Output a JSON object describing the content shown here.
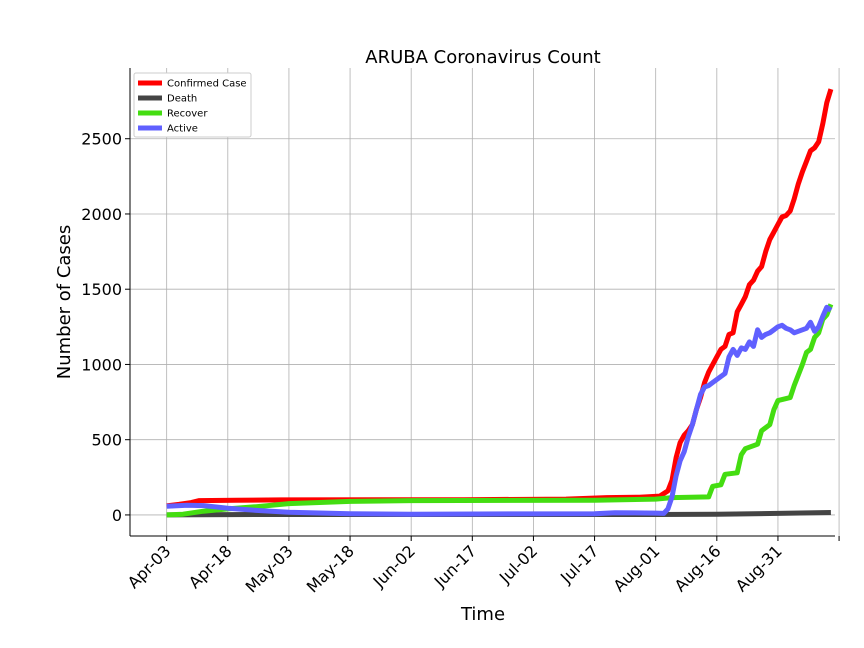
{
  "chart_data": {
    "type": "line",
    "title": "ARUBA Coronavirus Count",
    "xlabel": "Time",
    "ylabel": "Number of Cases",
    "x_ticks": [
      "Apr-03",
      "Apr-18",
      "May-03",
      "May-18",
      "Jun-02",
      "Jun-17",
      "Jul-02",
      "Jul-17",
      "Aug-01",
      "Aug-16",
      "Aug-31"
    ],
    "y_ticks": [
      0,
      500,
      1000,
      1500,
      2000,
      2500
    ],
    "xlim": [
      "2020-03-25",
      "2020-09-14"
    ],
    "ylim": [
      -140,
      2970
    ],
    "grid": true,
    "legend_position": "top-left",
    "series": [
      {
        "name": "Confirmed Case",
        "color": "#ff0000",
        "points": [
          [
            "2020-04-03",
            60
          ],
          [
            "2020-04-06",
            70
          ],
          [
            "2020-04-09",
            82
          ],
          [
            "2020-04-11",
            95
          ],
          [
            "2020-04-20",
            98
          ],
          [
            "2020-05-01",
            100
          ],
          [
            "2020-06-15",
            101
          ],
          [
            "2020-07-10",
            105
          ],
          [
            "2020-07-20",
            115
          ],
          [
            "2020-07-28",
            118
          ],
          [
            "2020-08-02",
            125
          ],
          [
            "2020-08-04",
            160
          ],
          [
            "2020-08-05",
            230
          ],
          [
            "2020-08-06",
            380
          ],
          [
            "2020-08-07",
            480
          ],
          [
            "2020-08-08",
            530
          ],
          [
            "2020-08-09",
            560
          ],
          [
            "2020-08-10",
            600
          ],
          [
            "2020-08-11",
            700
          ],
          [
            "2020-08-12",
            780
          ],
          [
            "2020-08-13",
            880
          ],
          [
            "2020-08-14",
            950
          ],
          [
            "2020-08-15",
            1000
          ],
          [
            "2020-08-16",
            1050
          ],
          [
            "2020-08-17",
            1100
          ],
          [
            "2020-08-18",
            1120
          ],
          [
            "2020-08-19",
            1200
          ],
          [
            "2020-08-20",
            1210
          ],
          [
            "2020-08-21",
            1350
          ],
          [
            "2020-08-22",
            1400
          ],
          [
            "2020-08-23",
            1450
          ],
          [
            "2020-08-24",
            1530
          ],
          [
            "2020-08-25",
            1560
          ],
          [
            "2020-08-26",
            1620
          ],
          [
            "2020-08-27",
            1650
          ],
          [
            "2020-08-28",
            1750
          ],
          [
            "2020-08-29",
            1830
          ],
          [
            "2020-08-30",
            1880
          ],
          [
            "2020-08-31",
            1930
          ],
          [
            "2020-09-01",
            1980
          ],
          [
            "2020-09-02",
            1990
          ],
          [
            "2020-09-03",
            2020
          ],
          [
            "2020-09-04",
            2100
          ],
          [
            "2020-09-05",
            2200
          ],
          [
            "2020-09-06",
            2280
          ],
          [
            "2020-09-07",
            2350
          ],
          [
            "2020-09-08",
            2420
          ],
          [
            "2020-09-09",
            2440
          ],
          [
            "2020-09-10",
            2480
          ],
          [
            "2020-09-11",
            2600
          ],
          [
            "2020-09-12",
            2740
          ],
          [
            "2020-09-13",
            2830
          ]
        ]
      },
      {
        "name": "Death",
        "color": "#444444",
        "points": [
          [
            "2020-04-03",
            0
          ],
          [
            "2020-04-18",
            2
          ],
          [
            "2020-05-03",
            3
          ],
          [
            "2020-08-01",
            3
          ],
          [
            "2020-08-16",
            5
          ],
          [
            "2020-08-31",
            10
          ],
          [
            "2020-09-13",
            16
          ]
        ]
      },
      {
        "name": "Recover",
        "color": "#44dd11",
        "points": [
          [
            "2020-04-03",
            0
          ],
          [
            "2020-04-07",
            5
          ],
          [
            "2020-04-12",
            25
          ],
          [
            "2020-04-18",
            40
          ],
          [
            "2020-04-25",
            55
          ],
          [
            "2020-05-03",
            75
          ],
          [
            "2020-05-18",
            90
          ],
          [
            "2020-06-02",
            95
          ],
          [
            "2020-07-17",
            98
          ],
          [
            "2020-08-01",
            105
          ],
          [
            "2020-08-05",
            115
          ],
          [
            "2020-08-14",
            120
          ],
          [
            "2020-08-15",
            190
          ],
          [
            "2020-08-17",
            200
          ],
          [
            "2020-08-18",
            270
          ],
          [
            "2020-08-21",
            280
          ],
          [
            "2020-08-22",
            400
          ],
          [
            "2020-08-23",
            440
          ],
          [
            "2020-08-24",
            450
          ],
          [
            "2020-08-26",
            470
          ],
          [
            "2020-08-27",
            560
          ],
          [
            "2020-08-29",
            600
          ],
          [
            "2020-08-30",
            700
          ],
          [
            "2020-08-31",
            760
          ],
          [
            "2020-09-03",
            780
          ],
          [
            "2020-09-04",
            860
          ],
          [
            "2020-09-06",
            1000
          ],
          [
            "2020-09-07",
            1080
          ],
          [
            "2020-09-08",
            1100
          ],
          [
            "2020-09-09",
            1180
          ],
          [
            "2020-09-10",
            1210
          ],
          [
            "2020-09-11",
            1300
          ],
          [
            "2020-09-12",
            1330
          ],
          [
            "2020-09-13",
            1400
          ]
        ]
      },
      {
        "name": "Active",
        "color": "#6060ff",
        "points": [
          [
            "2020-04-03",
            58
          ],
          [
            "2020-04-08",
            65
          ],
          [
            "2020-04-12",
            62
          ],
          [
            "2020-04-18",
            45
          ],
          [
            "2020-04-25",
            30
          ],
          [
            "2020-05-03",
            18
          ],
          [
            "2020-05-18",
            8
          ],
          [
            "2020-06-02",
            5
          ],
          [
            "2020-07-17",
            8
          ],
          [
            "2020-07-22",
            15
          ],
          [
            "2020-08-01",
            12
          ],
          [
            "2020-08-03",
            10
          ],
          [
            "2020-08-04",
            40
          ],
          [
            "2020-08-05",
            120
          ],
          [
            "2020-08-06",
            260
          ],
          [
            "2020-08-07",
            360
          ],
          [
            "2020-08-08",
            420
          ],
          [
            "2020-08-09",
            520
          ],
          [
            "2020-08-10",
            600
          ],
          [
            "2020-08-11",
            700
          ],
          [
            "2020-08-12",
            800
          ],
          [
            "2020-08-13",
            850
          ],
          [
            "2020-08-14",
            860
          ],
          [
            "2020-08-15",
            880
          ],
          [
            "2020-08-16",
            900
          ],
          [
            "2020-08-17",
            920
          ],
          [
            "2020-08-18",
            940
          ],
          [
            "2020-08-19",
            1050
          ],
          [
            "2020-08-20",
            1100
          ],
          [
            "2020-08-21",
            1060
          ],
          [
            "2020-08-22",
            1110
          ],
          [
            "2020-08-23",
            1100
          ],
          [
            "2020-08-24",
            1150
          ],
          [
            "2020-08-25",
            1120
          ],
          [
            "2020-08-26",
            1230
          ],
          [
            "2020-08-27",
            1180
          ],
          [
            "2020-08-28",
            1200
          ],
          [
            "2020-08-29",
            1210
          ],
          [
            "2020-08-30",
            1230
          ],
          [
            "2020-08-31",
            1250
          ],
          [
            "2020-09-01",
            1260
          ],
          [
            "2020-09-02",
            1240
          ],
          [
            "2020-09-03",
            1230
          ],
          [
            "2020-09-04",
            1210
          ],
          [
            "2020-09-05",
            1220
          ],
          [
            "2020-09-06",
            1230
          ],
          [
            "2020-09-07",
            1240
          ],
          [
            "2020-09-08",
            1280
          ],
          [
            "2020-09-09",
            1220
          ],
          [
            "2020-09-10",
            1250
          ],
          [
            "2020-09-11",
            1320
          ],
          [
            "2020-09-12",
            1380
          ],
          [
            "2020-09-13",
            1360
          ]
        ]
      }
    ]
  }
}
